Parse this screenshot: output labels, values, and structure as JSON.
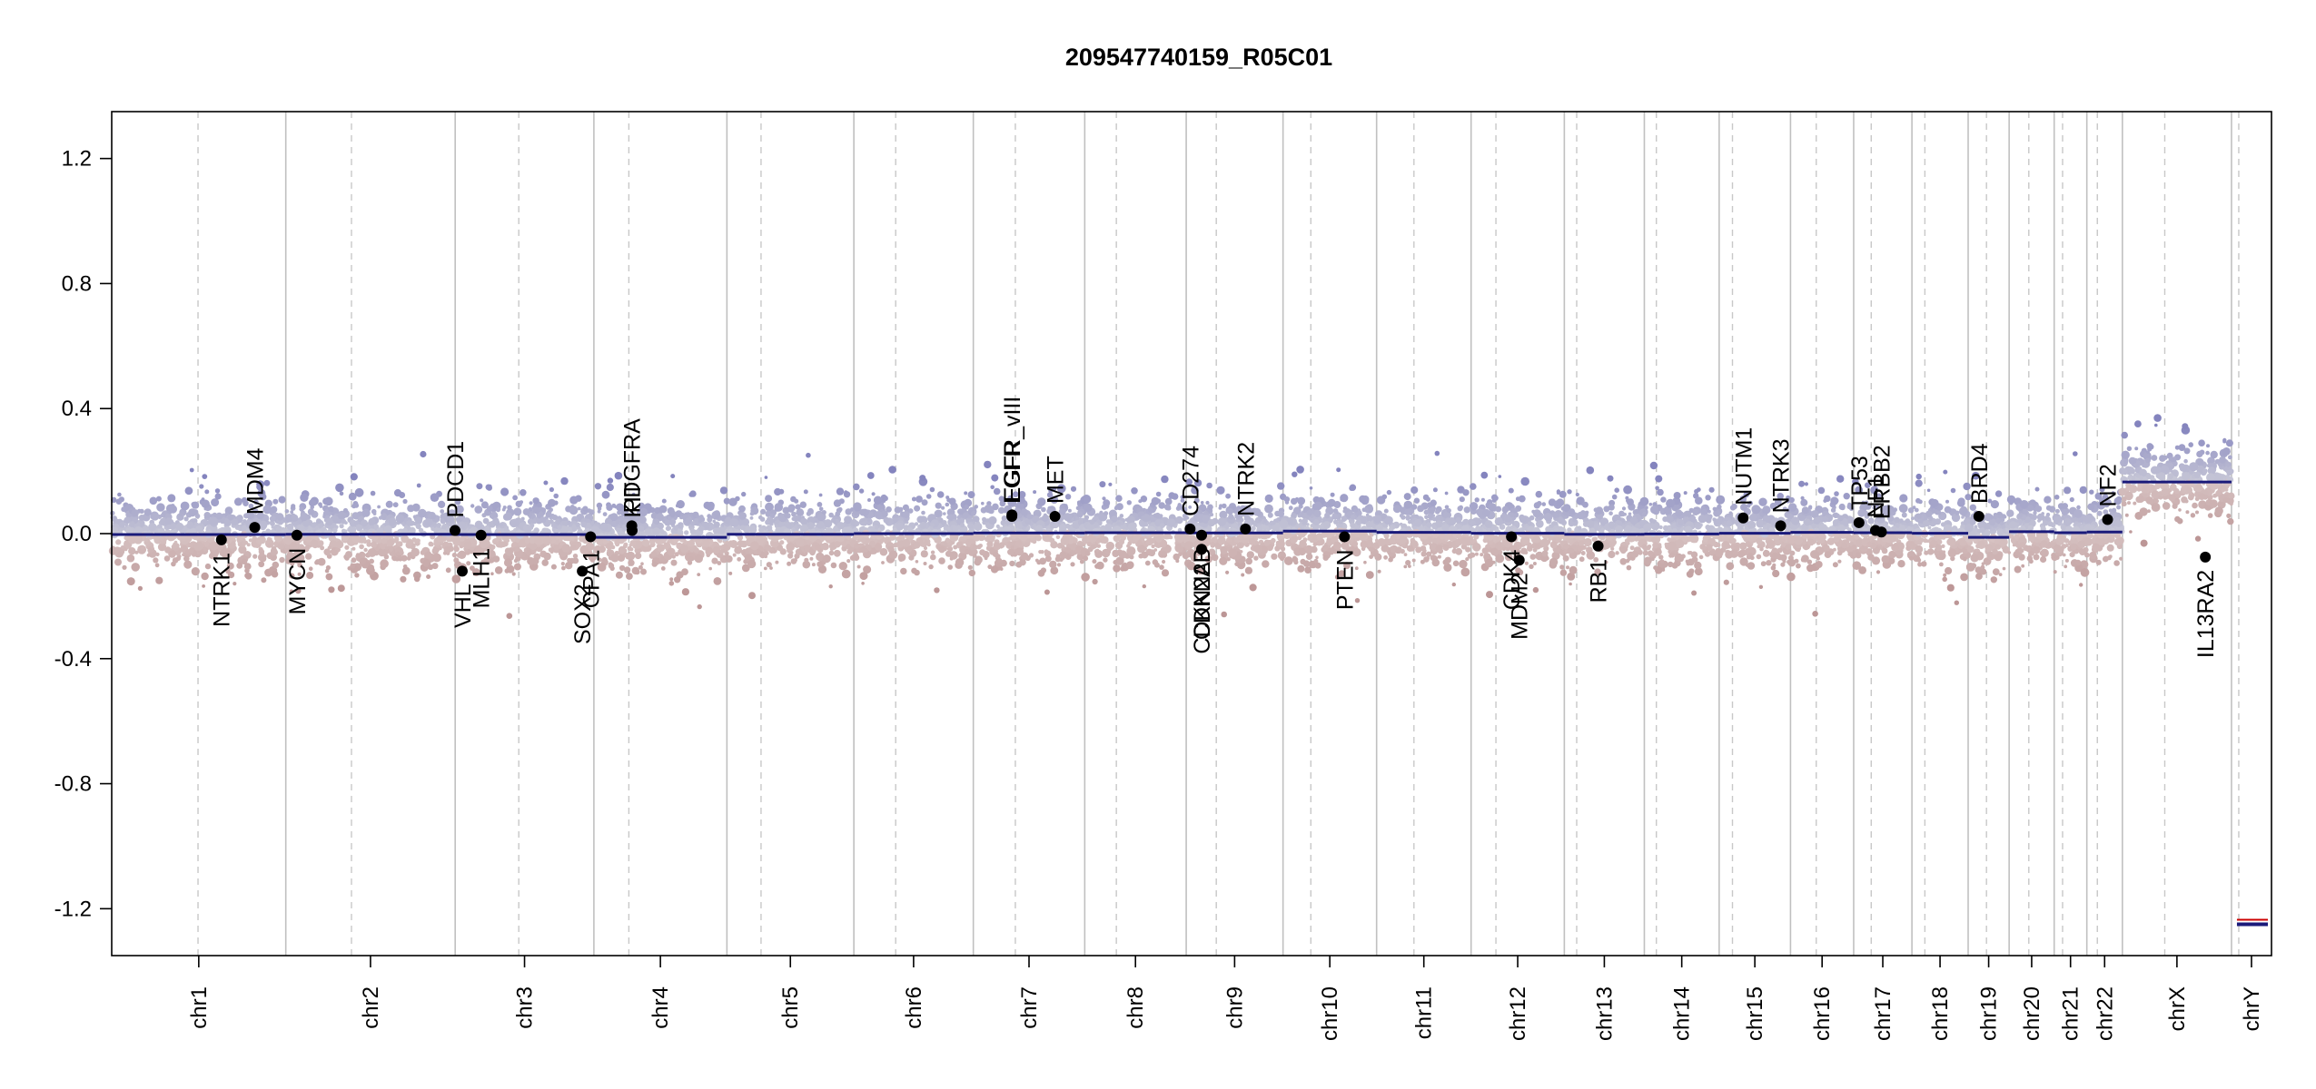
{
  "chart_data": {
    "type": "scatter",
    "title": "209547740159_R05C01",
    "xlabel": "",
    "ylabel": "",
    "ylim": [
      -1.35,
      1.35
    ],
    "y_ticks": [
      -1.2,
      -0.8,
      -0.4,
      0.0,
      0.4,
      0.8,
      1.2
    ],
    "y_tick_labels": [
      "-1.2",
      "-0.8",
      "-0.4",
      "0.0",
      "0.4",
      "0.8",
      "1.2"
    ],
    "colors": {
      "segment_line": "#1a1a7a",
      "gain_points": "#9a9ac6",
      "loss_points": "#c8a4a4",
      "gene_marker": "#000000",
      "grid_solid": "#c0c0c0",
      "grid_dashed": "#c8c8c8",
      "chrY_segment_red": "#cc0000"
    },
    "chromosomes": [
      {
        "name": "chr1",
        "start": 0,
        "length": 248.9,
        "centromere": 123.4,
        "segment": -0.003
      },
      {
        "name": "chr2",
        "start": 248.9,
        "length": 242.2,
        "centromere": 93.9,
        "segment": -0.002
      },
      {
        "name": "chr3",
        "start": 491.1,
        "length": 198.3,
        "centromere": 90.9,
        "segment": -0.003
      },
      {
        "name": "chr4",
        "start": 689.4,
        "length": 190.2,
        "centromere": 50.0,
        "segment": -0.012
      },
      {
        "name": "chr5",
        "start": 879.6,
        "length": 181.5,
        "centromere": 48.8,
        "segment": -0.002
      },
      {
        "name": "chr6",
        "start": 1061.1,
        "length": 170.8,
        "centromere": 59.8,
        "segment": 0.0
      },
      {
        "name": "chr7",
        "start": 1231.9,
        "length": 159.3,
        "centromere": 60.1,
        "segment": 0.002
      },
      {
        "name": "chr8",
        "start": 1391.2,
        "length": 145.1,
        "centromere": 45.2,
        "segment": 0.003
      },
      {
        "name": "chr9",
        "start": 1536.3,
        "length": 138.4,
        "centromere": 43.0,
        "segment": 0.002
      },
      {
        "name": "chr10",
        "start": 1674.7,
        "length": 133.8,
        "centromere": 39.8,
        "segment": 0.008
      },
      {
        "name": "chr11",
        "start": 1808.5,
        "length": 135.1,
        "centromere": 53.4,
        "segment": 0.004
      },
      {
        "name": "chr12",
        "start": 1943.6,
        "length": 133.3,
        "centromere": 35.5,
        "segment": 0.001
      },
      {
        "name": "chr13",
        "start": 2076.9,
        "length": 114.4,
        "centromere": 17.7,
        "segment": -0.002
      },
      {
        "name": "chr14",
        "start": 2191.3,
        "length": 107.0,
        "centromere": 17.2,
        "segment": -0.001
      },
      {
        "name": "chr15",
        "start": 2298.3,
        "length": 102.0,
        "centromere": 19.0,
        "segment": 0.001
      },
      {
        "name": "chr16",
        "start": 2400.3,
        "length": 90.3,
        "centromere": 36.8,
        "segment": 0.004
      },
      {
        "name": "chr17",
        "start": 2490.6,
        "length": 83.3,
        "centromere": 25.1,
        "segment": 0.003
      },
      {
        "name": "chr18",
        "start": 2573.9,
        "length": 80.4,
        "centromere": 18.5,
        "segment": 0.001
      },
      {
        "name": "chr19",
        "start": 2654.3,
        "length": 58.6,
        "centromere": 26.2,
        "segment": -0.012
      },
      {
        "name": "chr20",
        "start": 2712.9,
        "length": 64.4,
        "centromere": 28.1,
        "segment": 0.006
      },
      {
        "name": "chr21",
        "start": 2777.3,
        "length": 46.7,
        "centromere": 12.0,
        "segment": 0.003
      },
      {
        "name": "chr22",
        "start": 2824.0,
        "length": 50.8,
        "centromere": 15.0,
        "segment": 0.005
      },
      {
        "name": "chrX",
        "start": 2874.8,
        "length": 156.0,
        "centromere": 60.6,
        "segment": 0.165
      },
      {
        "name": "chrY",
        "start": 3030.8,
        "length": 57.2,
        "centromere": 10.4,
        "segment": -1.25
      }
    ],
    "genes": [
      {
        "name": "NTRK1",
        "chrom": "chr1",
        "pos": 156.8,
        "value": -0.02,
        "label_side": "below"
      },
      {
        "name": "MDM4",
        "chrom": "chr1",
        "pos": 204.5,
        "value": 0.02,
        "label_side": "above"
      },
      {
        "name": "MYCN",
        "chrom": "chr2",
        "pos": 15.9,
        "value": -0.005,
        "label_side": "below"
      },
      {
        "name": "PDCD1",
        "chrom": "chr2",
        "pos": 241.9,
        "value": 0.01,
        "label_side": "above"
      },
      {
        "name": "VHL",
        "chrom": "chr3",
        "pos": 10.1,
        "value": -0.12,
        "label_side": "below"
      },
      {
        "name": "MLH1",
        "chrom": "chr3",
        "pos": 37.0,
        "value": -0.005,
        "label_side": "below"
      },
      {
        "name": "SOX2",
        "chrom": "chr3",
        "pos": 181.7,
        "value": -0.12,
        "label_side": "below"
      },
      {
        "name": "OPA1",
        "chrom": "chr3",
        "pos": 193.6,
        "value": -0.01,
        "label_side": "below"
      },
      {
        "name": "KIT",
        "chrom": "chr4",
        "pos": 54.7,
        "value": 0.01,
        "label_side": "above"
      },
      {
        "name": "PDGFRA",
        "chrom": "chr4",
        "pos": 54.2,
        "value": 0.025,
        "label_side": "above"
      },
      {
        "name": "EGFR",
        "chrom": "chr7",
        "pos": 55.1,
        "value": 0.055,
        "label_side": "above"
      },
      {
        "name": "EGFR_vIII",
        "chrom": "chr7",
        "pos": 55.2,
        "value": 0.06,
        "label_side": "above"
      },
      {
        "name": "MET",
        "chrom": "chr7",
        "pos": 116.7,
        "value": 0.055,
        "label_side": "above"
      },
      {
        "name": "CD274",
        "chrom": "chr9",
        "pos": 5.5,
        "value": 0.015,
        "label_side": "above"
      },
      {
        "name": "CDKN2A",
        "chrom": "chr9",
        "pos": 21.97,
        "value": -0.05,
        "label_side": "below"
      },
      {
        "name": "CDKN2B",
        "chrom": "chr9",
        "pos": 22.0,
        "value": -0.005,
        "label_side": "below"
      },
      {
        "name": "NTRK2",
        "chrom": "chr9",
        "pos": 84.7,
        "value": 0.015,
        "label_side": "above"
      },
      {
        "name": "PTEN",
        "chrom": "chr10",
        "pos": 87.9,
        "value": -0.01,
        "label_side": "below"
      },
      {
        "name": "CDK4",
        "chrom": "chr12",
        "pos": 57.7,
        "value": -0.01,
        "label_side": "below"
      },
      {
        "name": "MDM2",
        "chrom": "chr12",
        "pos": 68.8,
        "value": -0.085,
        "label_side": "below"
      },
      {
        "name": "RB1",
        "chrom": "chr13",
        "pos": 48.3,
        "value": -0.04,
        "label_side": "below"
      },
      {
        "name": "NUTM1",
        "chrom": "chr15",
        "pos": 34.3,
        "value": 0.05,
        "label_side": "above"
      },
      {
        "name": "NTRK3",
        "chrom": "chr15",
        "pos": 87.9,
        "value": 0.025,
        "label_side": "above"
      },
      {
        "name": "TP53",
        "chrom": "chr17",
        "pos": 7.6,
        "value": 0.035,
        "label_side": "above"
      },
      {
        "name": "NF1",
        "chrom": "chr17",
        "pos": 31.2,
        "value": 0.01,
        "label_side": "above"
      },
      {
        "name": "ERBB2",
        "chrom": "chr17",
        "pos": 39.7,
        "value": 0.005,
        "label_side": "above"
      },
      {
        "name": "BRD4",
        "chrom": "chr19",
        "pos": 15.3,
        "value": 0.055,
        "label_side": "above"
      },
      {
        "name": "NF2",
        "chrom": "chr22",
        "pos": 29.6,
        "value": 0.045,
        "label_side": "above"
      },
      {
        "name": "IL13RA2",
        "chrom": "chrX",
        "pos": 118.6,
        "value": -0.075,
        "label_side": "below"
      }
    ],
    "grid": true,
    "legend": "none"
  }
}
